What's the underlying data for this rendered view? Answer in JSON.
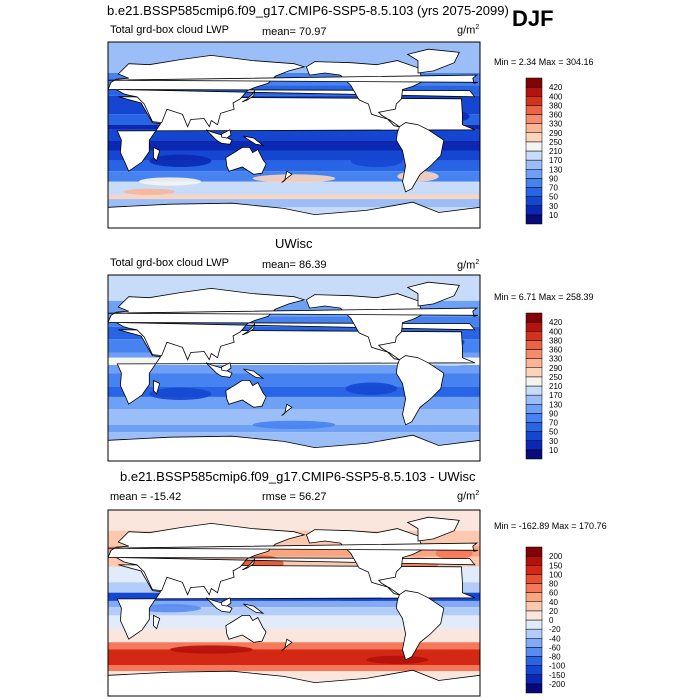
{
  "season": "DJF",
  "panels": [
    {
      "title": "b.e21.BSSP585cmip6.f09_g17.CMIP6-SSP5-8.5.103 (yrs 2075-2099)",
      "left_label": "Total grd-box cloud LWP",
      "center_label": "mean=  70.97",
      "units": "g/m",
      "units_sup": "2",
      "minmax": "Min =   2.34 Max = 304.16",
      "style": "abs"
    },
    {
      "title": "UWisc",
      "left_label": "Total grd-box cloud LWP",
      "center_label": "mean=  86.39",
      "units": "g/m",
      "units_sup": "2",
      "minmax": "Min =   6.71 Max = 258.39",
      "style": "abs"
    },
    {
      "title": "b.e21.BSSP585cmip6.f09_g17.CMIP6-SSP5-8.5.103 - UWisc",
      "left_label": "mean = -15.42",
      "center_label": "rmse =  56.27",
      "units": "g/m",
      "units_sup": "2",
      "minmax": "Min = -162.89 Max = 170.76",
      "style": "diff"
    }
  ],
  "chart_data": [
    {
      "type": "heatmap",
      "title": "b.e21.BSSP585cmip6.f09_g17.CMIP6-SSP5-8.5.103 (yrs 2075-2099)",
      "variable": "Total grd-box cloud LWP",
      "units": "g/m2",
      "mean": 70.97,
      "min": 2.34,
      "max": 304.16,
      "colorbar_levels": [
        10,
        30,
        50,
        70,
        90,
        130,
        170,
        210,
        250,
        290,
        330,
        360,
        380,
        400,
        420
      ],
      "colorbar_colors": [
        "#0a0a78",
        "#0a28b4",
        "#1446d2",
        "#2864e6",
        "#4682f0",
        "#6ea0f5",
        "#9bbef8",
        "#c8dcfa",
        "#f5f5f0",
        "#fcd4bc",
        "#fab496",
        "#f58c6e",
        "#eb6446",
        "#d2321e",
        "#b41410",
        "#820505"
      ]
    },
    {
      "type": "heatmap",
      "title": "UWisc",
      "variable": "Total grd-box cloud LWP",
      "units": "g/m2",
      "mean": 86.39,
      "min": 6.71,
      "max": 258.39,
      "colorbar_levels": [
        10,
        30,
        50,
        70,
        90,
        130,
        170,
        210,
        250,
        290,
        330,
        360,
        380,
        400,
        420
      ],
      "colorbar_colors": [
        "#0a0a78",
        "#0a28b4",
        "#1446d2",
        "#2864e6",
        "#4682f0",
        "#6ea0f5",
        "#9bbef8",
        "#c8dcfa",
        "#f5f5f0",
        "#fcd4bc",
        "#fab496",
        "#f58c6e",
        "#eb6446",
        "#d2321e",
        "#b41410",
        "#820505"
      ]
    },
    {
      "type": "heatmap",
      "title": "b.e21.BSSP585cmip6.f09_g17.CMIP6-SSP5-8.5.103 - UWisc",
      "variable": "Total grd-box cloud LWP difference",
      "units": "g/m2",
      "mean": -15.42,
      "rmse": 56.27,
      "min": -162.89,
      "max": 170.76,
      "colorbar_levels": [
        -200,
        -150,
        -100,
        -80,
        -60,
        -40,
        -20,
        0,
        20,
        40,
        60,
        80,
        100,
        150,
        200
      ],
      "colorbar_colors": [
        "#08087a",
        "#0a28b4",
        "#1446d2",
        "#2864e6",
        "#5a8cf0",
        "#82aaf5",
        "#b4cdf8",
        "#e1ebfa",
        "#fae6dc",
        "#fcc8b0",
        "#faa582",
        "#f5785a",
        "#e6502d",
        "#d22814",
        "#b40f0a",
        "#820505"
      ]
    }
  ]
}
